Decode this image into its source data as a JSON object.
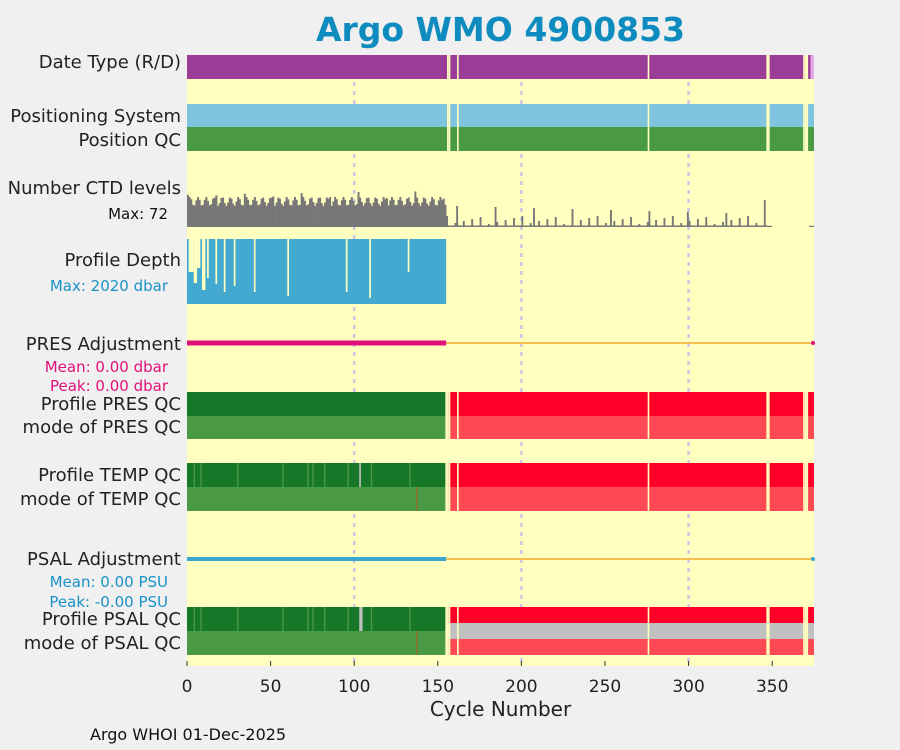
{
  "title": "Argo WMO 4900853",
  "footer": "Argo WHOI 01-Dec-2025",
  "labels": {
    "date_type": "Date Type (R/D)",
    "positioning_system": "Positioning System",
    "position_qc": "Position QC",
    "number_ctd_levels": "Number CTD levels",
    "ctd_max": "Max: 72",
    "profile_depth": "Profile Depth",
    "depth_max": "Max: 2020 dbar",
    "pres_adjustment": "PRES Adjustment",
    "pres_mean": "Mean: 0.00 dbar",
    "pres_peak": "Peak: 0.00 dbar",
    "profile_pres_qc": "Profile PRES QC",
    "mode_pres_qc": "mode of PRES QC",
    "profile_temp_qc": "Profile TEMP QC",
    "mode_temp_qc": "mode of TEMP QC",
    "psal_adjustment": "PSAL Adjustment",
    "psal_mean": "Mean: 0.00 PSU",
    "psal_peak": "Peak: -0.00 PSU",
    "profile_psal_qc": "Profile PSAL QC",
    "mode_psal_qc": "mode of PSAL QC"
  },
  "colors": {
    "background": "#ffffc0",
    "date_type": "#9b3c97",
    "positioning": "#7fc4df",
    "qc_good": "#4a9a45",
    "qc_good_dark": "#177729",
    "qc_bad": "#ff0028",
    "qc_bad_mode": "#ff4a55",
    "qc_grey": "#c0c0c0",
    "ctd": "#777777",
    "depth": "#43a9d0",
    "pres_adjust": "#e0107a",
    "psal_adjust": "#3aa6d0",
    "zero_line": "#f2c050",
    "grid": "#c8c8e6"
  },
  "chart_data": {
    "type": "timeline",
    "xlabel": "Cycle Number",
    "xlim": [
      0,
      375
    ],
    "xticks": [
      0,
      50,
      100,
      150,
      200,
      250,
      300,
      350
    ],
    "grid_cycles": [
      100,
      200,
      300
    ],
    "last_core_cycle": 155,
    "gaps": [
      155,
      156,
      157,
      162,
      276,
      347,
      348,
      369,
      370,
      371
    ],
    "ctd_max_levels": 72,
    "max_depth_dbar": 2020,
    "pres_adjustment_mean_dbar": 0.0,
    "pres_adjustment_peak_dbar": 0.0,
    "psal_adjustment_mean_psu": 0.0,
    "psal_adjustment_peak_psu": -0.0
  }
}
